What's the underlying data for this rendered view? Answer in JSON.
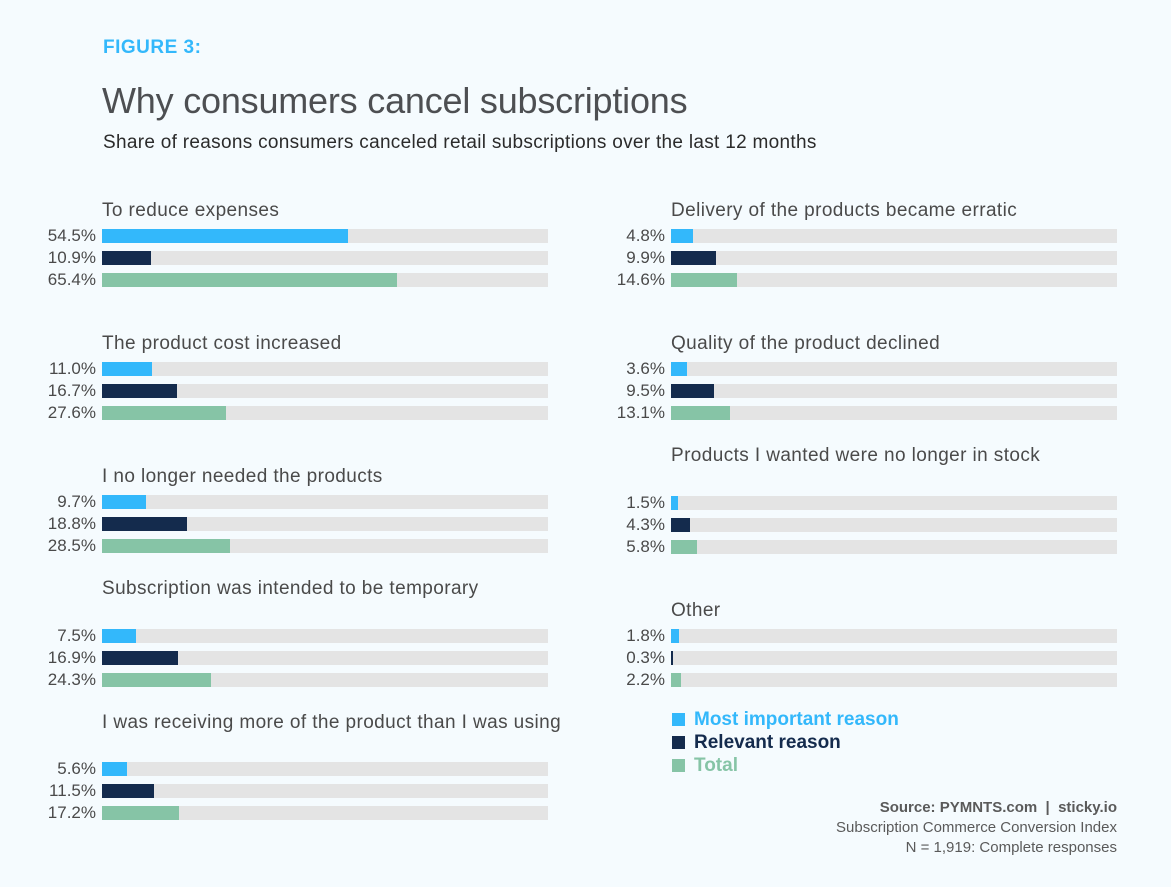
{
  "figure_label": "FIGURE 3:",
  "colors": {
    "most_important": "#33b8fb",
    "relevant": "#142b4d",
    "total": "#86c4a6",
    "track": "#e4e4e4",
    "background": "#f5fbfe"
  },
  "legend": [
    {
      "label": "Most important reason",
      "color": "#33b8fb"
    },
    {
      "label": "Relevant reason",
      "color": "#142b4d"
    },
    {
      "label": "Total",
      "color": "#86c4a6"
    }
  ],
  "source": {
    "line1": "Source: PYMNTS.com  |  sticky.io",
    "line2": "Subscription Commerce Conversion Index",
    "line3": "N = 1,919: Complete responses"
  },
  "chart_data": {
    "type": "bar",
    "orientation": "horizontal",
    "title": "Why consumers cancel subscriptions",
    "subtitle": "Share of reasons consumers canceled retail subscriptions over the last 12 months",
    "unit": "%",
    "xlim": [
      0,
      99
    ],
    "grid": false,
    "legend_position": "bottom-right",
    "series_names": [
      "Most important reason",
      "Relevant reason",
      "Total"
    ],
    "categories": [
      {
        "label": "To reduce expenses",
        "values": [
          54.5,
          10.9,
          65.4
        ],
        "labels": [
          "54.5%",
          "10.9%",
          "65.4%"
        ]
      },
      {
        "label": "The product cost increased",
        "values": [
          11.0,
          16.7,
          27.6
        ],
        "labels": [
          "11.0%",
          "16.7%",
          "27.6%"
        ]
      },
      {
        "label": "I no longer needed the products",
        "values": [
          9.7,
          18.8,
          28.5
        ],
        "labels": [
          "9.7%",
          "18.8%",
          "28.5%"
        ]
      },
      {
        "label": "Subscription was intended to be temporary",
        "values": [
          7.5,
          16.9,
          24.3
        ],
        "labels": [
          "7.5%",
          "16.9%",
          "24.3%"
        ]
      },
      {
        "label": "I was receiving more of the product than I was using",
        "values": [
          5.6,
          11.5,
          17.2
        ],
        "labels": [
          "5.6%",
          "11.5%",
          "17.2%"
        ]
      },
      {
        "label": "Delivery of the products became erratic",
        "values": [
          4.8,
          9.9,
          14.6
        ],
        "labels": [
          "4.8%",
          "9.9%",
          "14.6%"
        ]
      },
      {
        "label": "Quality of the product declined",
        "values": [
          3.6,
          9.5,
          13.1
        ],
        "labels": [
          "3.6%",
          "9.5%",
          "13.1%"
        ]
      },
      {
        "label": "Products I wanted were no longer in stock",
        "values": [
          1.5,
          4.3,
          5.8
        ],
        "labels": [
          "1.5%",
          "4.3%",
          "5.8%"
        ]
      },
      {
        "label": "Other",
        "values": [
          1.8,
          0.3,
          2.2
        ],
        "labels": [
          "1.8%",
          "0.3%",
          "2.2%"
        ]
      }
    ]
  }
}
